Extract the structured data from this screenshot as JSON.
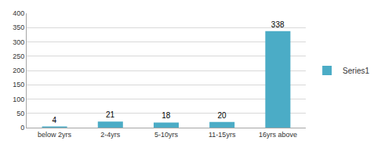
{
  "chart_data": {
    "type": "bar",
    "categories": [
      "below 2yrs",
      "2-4yrs",
      "5-10yrs",
      "11-15yrs",
      "16yrs above"
    ],
    "series": [
      {
        "name": "Series1",
        "color": "#4bacc6",
        "values": [
          4,
          21,
          18,
          20,
          338
        ]
      }
    ],
    "ylim": [
      0,
      400
    ],
    "yticks": [
      0,
      50,
      100,
      150,
      200,
      250,
      300,
      350,
      400
    ],
    "grid": true,
    "legend": "right",
    "data_labels": true
  }
}
